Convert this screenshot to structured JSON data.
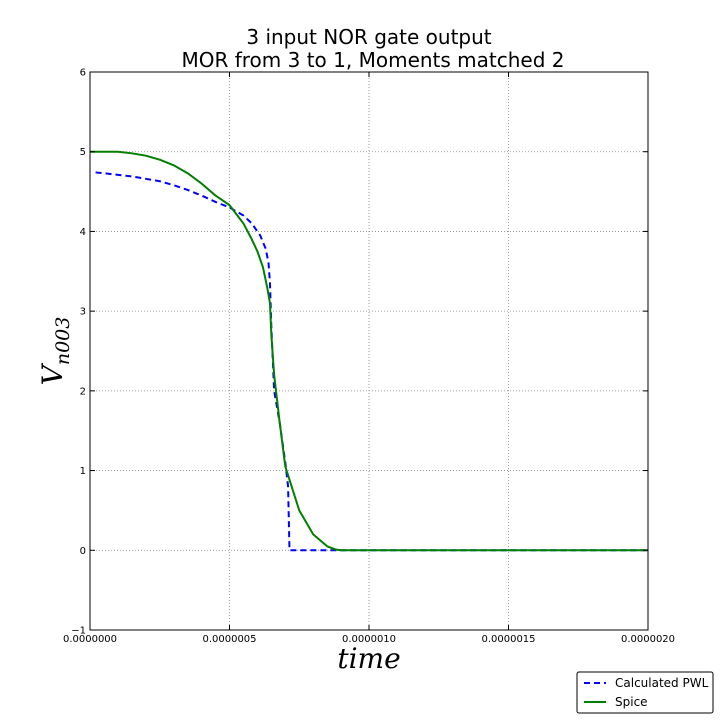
{
  "chart_data": {
    "type": "line",
    "title": [
      "3 input NOR gate    output",
      "MOR from 3 to 1, Moments matched 2"
    ],
    "xlabel": "time",
    "ylabel": "V",
    "ylabel_subscript": "n003",
    "xlim": [
      0,
      2e-06
    ],
    "ylim": [
      -1,
      6
    ],
    "xticks": [
      0,
      5e-07,
      1e-06,
      1.5e-06,
      2e-06
    ],
    "xtick_labels": [
      "0.0000000",
      "0.0000005",
      "0.0000010",
      "0.0000015",
      "0.0000020"
    ],
    "yticks": [
      -1,
      0,
      1,
      2,
      3,
      4,
      5,
      6
    ],
    "ytick_labels": [
      "−1",
      "0",
      "1",
      "2",
      "3",
      "4",
      "5",
      "6"
    ],
    "grid": true,
    "legend_position": "lower-right, outside plot",
    "series": [
      {
        "name": "Calculated PWL",
        "color": "#0000ff",
        "style": "dashed",
        "x": [
          2e-08,
          5e-08,
          1e-07,
          1.5e-07,
          2e-07,
          2.5e-07,
          3e-07,
          3.5e-07,
          4e-07,
          4.5e-07,
          5e-07,
          5.5e-07,
          5.8e-07,
          6.1e-07,
          6.3e-07,
          6.4e-07,
          6.45e-07,
          6.5e-07,
          6.6e-07,
          6.8e-07,
          7e-07,
          7.1e-07,
          7.15e-07,
          7.5e-07,
          1e-06,
          1.5e-06,
          2e-06
        ],
        "y": [
          4.74,
          4.73,
          4.71,
          4.69,
          4.66,
          4.63,
          4.58,
          4.52,
          4.45,
          4.37,
          4.3,
          4.2,
          4.1,
          3.95,
          3.78,
          3.6,
          3.35,
          2.8,
          2.0,
          1.6,
          1.1,
          0.8,
          0.0,
          0.0,
          0.0,
          0.0,
          0.0
        ]
      },
      {
        "name": "Spice",
        "color": "#008000",
        "style": "solid",
        "x": [
          0,
          5e-08,
          1e-07,
          1.5e-07,
          2e-07,
          2.5e-07,
          3e-07,
          3.5e-07,
          4e-07,
          4.5e-07,
          5e-07,
          5.5e-07,
          5.8e-07,
          6e-07,
          6.2e-07,
          6.35e-07,
          6.45e-07,
          6.5e-07,
          6.6e-07,
          6.8e-07,
          7e-07,
          7.5e-07,
          8e-07,
          8.5e-07,
          8.8e-07,
          9e-07,
          1.5e-06,
          2e-06
        ],
        "y": [
          5.0,
          5.0,
          5.0,
          4.98,
          4.95,
          4.9,
          4.83,
          4.73,
          4.6,
          4.45,
          4.33,
          4.1,
          3.9,
          3.75,
          3.55,
          3.3,
          3.1,
          2.7,
          2.2,
          1.6,
          1.05,
          0.5,
          0.2,
          0.05,
          0.01,
          0.0,
          0.0,
          0.0
        ]
      }
    ]
  }
}
